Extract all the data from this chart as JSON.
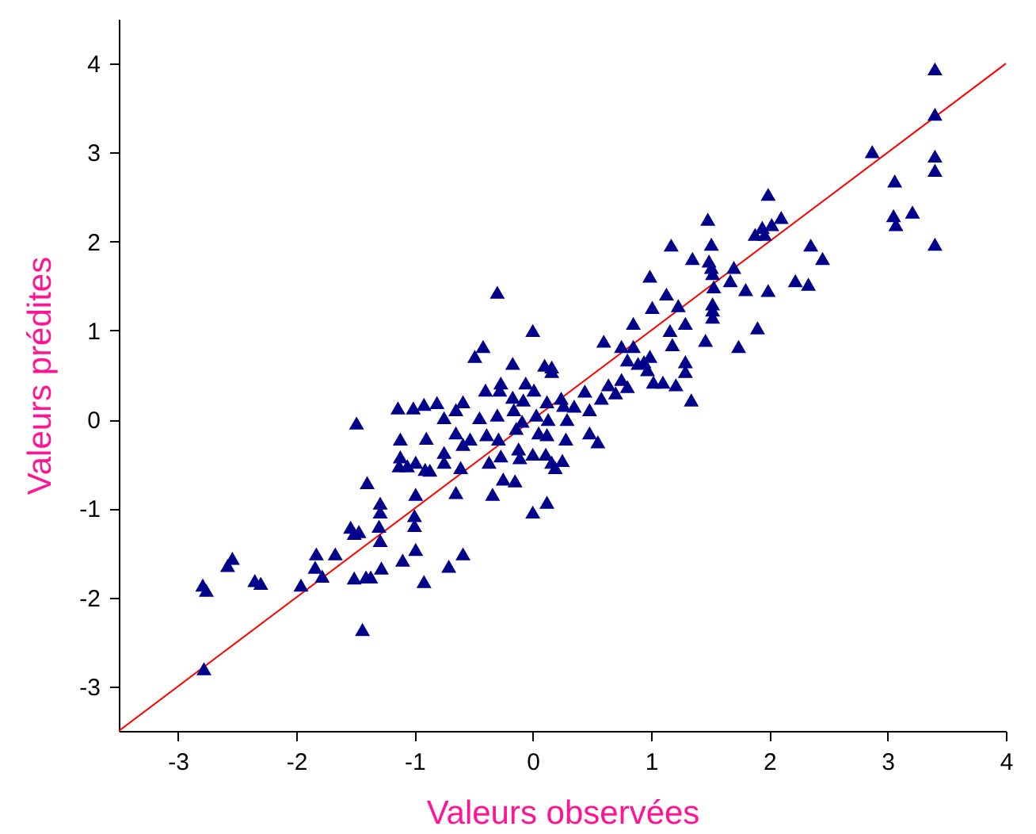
{
  "chart_data": {
    "type": "scatter",
    "xlabel": "Valeurs observées",
    "ylabel": "Valeurs prédites",
    "xlim": [
      -3.5,
      4
    ],
    "ylim": [
      -3.5,
      4.5
    ],
    "xticks": [
      -3,
      -2,
      -1,
      0,
      1,
      2,
      3,
      4
    ],
    "yticks": [
      -3,
      -2,
      -1,
      0,
      1,
      2,
      3,
      4
    ],
    "grid": false,
    "series": [
      {
        "color": "#00008b",
        "marker": "triangle",
        "x": [
          -2.78,
          -2.79,
          -2.76,
          -2.58,
          -2.54,
          -2.35,
          -2.3,
          -1.96,
          -1.83,
          -1.84,
          -1.78,
          -1.67,
          -1.54,
          -1.51,
          -1.47,
          -1.51,
          -1.41,
          -1.37,
          -1.44,
          -1.49,
          -1.4,
          -1.29,
          -1.29,
          -1.3,
          -1.29,
          -1.28,
          -1.12,
          -1.12,
          -1.13,
          -1.06,
          -0.99,
          -1.1,
          -0.99,
          -1.0,
          -1.0,
          -0.99,
          -0.92,
          -1.14,
          -1.01,
          -0.92,
          -0.81,
          -0.9,
          -0.91,
          -0.87,
          -0.75,
          -0.75,
          -0.75,
          -0.65,
          -0.59,
          -0.65,
          -0.59,
          -0.61,
          -0.65,
          -0.71,
          -0.59,
          -0.49,
          -0.42,
          -0.53,
          -0.45,
          -0.4,
          -0.39,
          -0.37,
          -0.34,
          -0.3,
          -0.27,
          -0.28,
          -0.3,
          -0.29,
          -0.27,
          -0.25,
          -0.15,
          -0.17,
          -0.17,
          -0.16,
          -0.14,
          -0.12,
          -0.11,
          -0.09,
          -0.08,
          -0.06,
          0,
          0.01,
          0,
          0,
          0.03,
          0.05,
          0.1,
          0.16,
          0.16,
          0.12,
          0.13,
          0.12,
          0.11,
          0.16,
          0.19,
          0.12,
          0.24,
          0.26,
          0.29,
          0.28,
          0.25,
          0.35,
          0.44,
          0.48,
          0.48,
          0.55,
          0.6,
          0.58,
          0.64,
          0.7,
          0.75,
          0.75,
          0.8,
          0.8,
          0.85,
          0.85,
          0.89,
          0.94,
          0.97,
          0.99,
          0.99,
          1.01,
          1.02,
          1.1,
          1.13,
          1.16,
          1.18,
          1.21,
          1.17,
          1.23,
          1.29,
          1.29,
          1.29,
          1.34,
          1.35,
          1.46,
          1.48,
          1.51,
          1.49,
          1.51,
          1.52,
          1.53,
          1.52,
          1.52,
          1.52,
          1.67,
          1.7,
          1.74,
          1.8,
          1.88,
          1.94,
          1.96,
          1.9,
          1.99,
          1.99,
          2.02,
          2.1,
          2.22,
          2.33,
          2.35,
          2.45,
          2.87,
          3.06,
          3.05,
          3.07,
          3.21,
          3.4,
          3.4,
          3.4,
          3.4,
          3.4
        ],
        "values": [
          -2.8,
          -1.86,
          -1.92,
          -1.64,
          -1.56,
          -1.81,
          -1.84,
          -1.86,
          -1.51,
          -1.66,
          -1.76,
          -1.51,
          -1.21,
          -1.28,
          -1.26,
          -1.78,
          -1.77,
          -1.77,
          -2.36,
          -0.04,
          -0.71,
          -0.94,
          -1.04,
          -1.2,
          -1.36,
          -1.67,
          -0.22,
          -0.42,
          -0.52,
          -0.52,
          -0.48,
          -1.58,
          -0.84,
          -1.08,
          -1.19,
          -1.46,
          -1.82,
          0.13,
          0.13,
          0.17,
          0.19,
          -0.21,
          -0.56,
          -0.57,
          0.02,
          -0.37,
          -0.48,
          0.11,
          0.2,
          -0.15,
          -0.28,
          -0.54,
          -0.82,
          -1.65,
          -1.51,
          0.71,
          0.82,
          -0.22,
          0.02,
          0.33,
          -0.17,
          -0.48,
          -0.84,
          1.43,
          0.41,
          0.33,
          0.05,
          -0.22,
          -0.41,
          -0.67,
          -0.69,
          0.63,
          0.25,
          0.11,
          -0.1,
          -0.33,
          -0.43,
          -0.02,
          0.22,
          0.41,
          1.0,
          0.33,
          -0.39,
          -1.04,
          0.05,
          -0.15,
          0.61,
          0.59,
          0.54,
          0.2,
          0,
          -0.17,
          -0.39,
          -0.48,
          -0.54,
          -0.93,
          0.24,
          0.16,
          0,
          -0.22,
          -0.46,
          0.15,
          0.32,
          0.11,
          -0.15,
          -0.25,
          0.88,
          0.24,
          0.39,
          0.3,
          0.82,
          0.45,
          0.67,
          0.37,
          1.08,
          0.82,
          0.63,
          0.65,
          0.56,
          0.71,
          1.61,
          1.26,
          0.42,
          0.42,
          1.41,
          1.0,
          0.84,
          0.39,
          1.96,
          1.28,
          1.08,
          0.65,
          0.54,
          0.22,
          1.81,
          0.89,
          2.25,
          1.97,
          1.78,
          1.71,
          1.64,
          1.49,
          1.3,
          1.23,
          1.15,
          1.56,
          1.71,
          0.82,
          1.46,
          2.08,
          2.16,
          2.08,
          1.03,
          1.45,
          2.53,
          2.19,
          2.27,
          1.56,
          1.52,
          1.96,
          1.81,
          3.01,
          2.68,
          2.29,
          2.19,
          2.33,
          3.94,
          3.43,
          2.96,
          2.8,
          1.97
        ]
      },
      {
        "type": "line",
        "color": "#ff0000",
        "marker": "none",
        "x": [
          -3.5,
          4
        ],
        "values": [
          -3.5,
          4
        ]
      }
    ]
  }
}
